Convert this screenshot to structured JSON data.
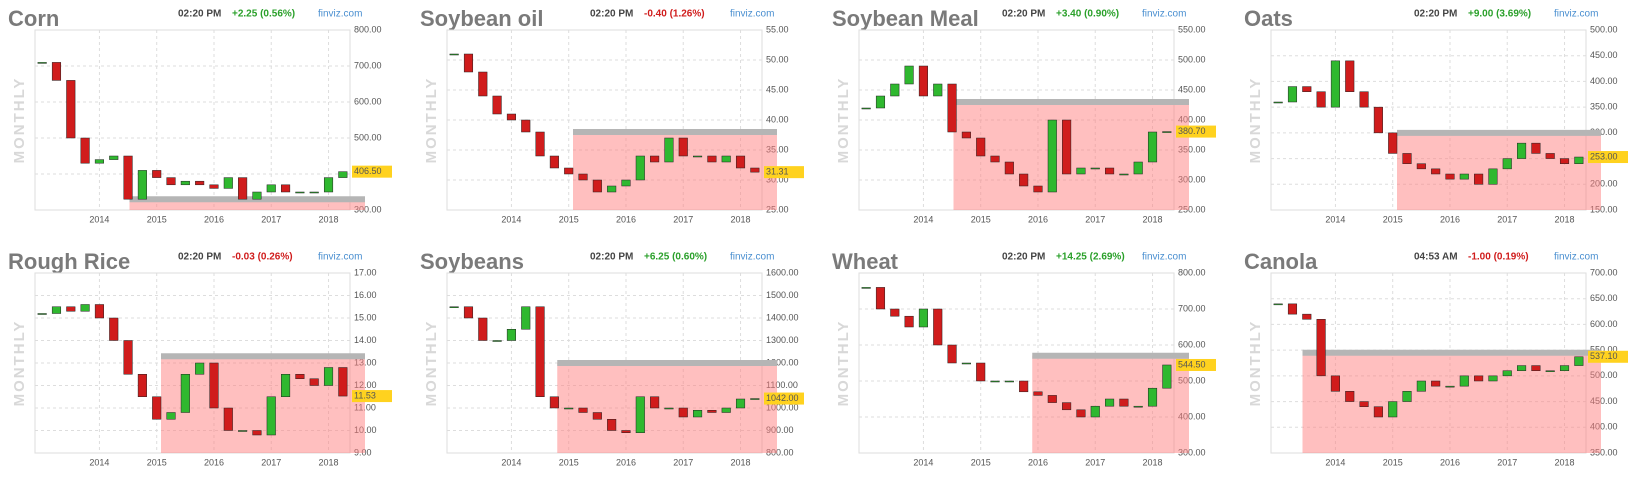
{
  "chart_data": [
    {
      "type": "candlestick",
      "title": "Corn",
      "time": "02:20 PM",
      "change": "+2.25 (0.56%)",
      "change_color": "#2aa02a",
      "source": "finviz.com",
      "y_label": "MONTHLY",
      "categories": [
        null,
        null,
        null,
        null,
        "2014",
        null,
        null,
        null,
        "2015",
        null,
        null,
        null,
        "2016",
        null,
        null,
        null,
        "2017",
        null,
        null,
        null,
        "2018",
        null
      ],
      "values": [
        710,
        660,
        500,
        430,
        440,
        450,
        330,
        410,
        390,
        370,
        380,
        370,
        360,
        390,
        330,
        350,
        370,
        350,
        350,
        350,
        390,
        406.5
      ],
      "value_labels": [
        null,
        null,
        null,
        null,
        null,
        null,
        null,
        null,
        null,
        null,
        null,
        null,
        null,
        null,
        null,
        null,
        null,
        null,
        null,
        null,
        null,
        "406.50"
      ],
      "resistance": 330,
      "up_color": "#2fb82f",
      "down_color": "#d01c1c",
      "ylim": [
        300,
        800
      ],
      "yticks": [
        {
          "value": 300,
          "label": "300.00"
        },
        {
          "value": 400,
          "label": "400.00"
        },
        {
          "value": 500,
          "label": "500.00"
        },
        {
          "value": 600,
          "label": "600.00"
        },
        {
          "value": 700,
          "label": "700.00"
        },
        {
          "value": 800,
          "label": "800.00"
        }
      ]
    },
    {
      "type": "candlestick",
      "title": "Soybean oil",
      "time": "02:20 PM",
      "change": "-0.40 (1.26%)",
      "change_color": "#d01c1c",
      "source": "finviz.com",
      "y_label": "MONTHLY",
      "categories": [
        null,
        null,
        null,
        null,
        "2014",
        null,
        null,
        null,
        "2015",
        null,
        null,
        null,
        "2016",
        null,
        null,
        null,
        "2017",
        null,
        null,
        null,
        "2018",
        null
      ],
      "values": [
        51,
        48,
        44,
        41,
        40,
        38,
        34,
        32,
        31,
        30,
        28,
        29,
        30,
        34,
        33,
        37,
        34,
        34,
        33,
        34,
        32,
        31.31
      ],
      "value_labels": [
        null,
        null,
        null,
        null,
        null,
        null,
        null,
        null,
        null,
        null,
        null,
        null,
        null,
        null,
        null,
        null,
        null,
        null,
        null,
        null,
        null,
        "31.31"
      ],
      "resistance": 38,
      "up_color": "#2fb82f",
      "down_color": "#d01c1c",
      "ylim": [
        25,
        55
      ],
      "yticks": [
        {
          "value": 25,
          "label": "25.00"
        },
        {
          "value": 30,
          "label": "30.00"
        },
        {
          "value": 35,
          "label": "35.00"
        },
        {
          "value": 40,
          "label": "40.00"
        },
        {
          "value": 45,
          "label": "45.00"
        },
        {
          "value": 50,
          "label": "50.00"
        },
        {
          "value": 55,
          "label": "55.00"
        }
      ]
    },
    {
      "type": "candlestick",
      "title": "Soybean Meal",
      "time": "02:20 PM",
      "change": "+3.40 (0.90%)",
      "change_color": "#2aa02a",
      "source": "finviz.com",
      "y_label": "MONTHLY",
      "categories": [
        null,
        null,
        null,
        null,
        "2014",
        null,
        null,
        null,
        "2015",
        null,
        null,
        null,
        "2016",
        null,
        null,
        null,
        "2017",
        null,
        null,
        null,
        "2018",
        null
      ],
      "values": [
        420,
        440,
        460,
        490,
        440,
        460,
        380,
        370,
        340,
        330,
        310,
        290,
        280,
        400,
        310,
        320,
        320,
        310,
        310,
        330,
        380,
        380.7
      ],
      "value_labels": [
        null,
        null,
        null,
        null,
        null,
        null,
        null,
        null,
        null,
        null,
        null,
        null,
        null,
        null,
        null,
        null,
        null,
        null,
        null,
        null,
        null,
        "380.70"
      ],
      "resistance": 430,
      "up_color": "#2fb82f",
      "down_color": "#d01c1c",
      "ylim": [
        250,
        550
      ],
      "yticks": [
        {
          "value": 250,
          "label": "250.00"
        },
        {
          "value": 300,
          "label": "300.00"
        },
        {
          "value": 350,
          "label": "350.00"
        },
        {
          "value": 400,
          "label": "400.00"
        },
        {
          "value": 450,
          "label": "450.00"
        },
        {
          "value": 500,
          "label": "500.00"
        },
        {
          "value": 550,
          "label": "550.00"
        }
      ]
    },
    {
      "type": "candlestick",
      "title": "Oats",
      "time": "02:20 PM",
      "change": "+9.00 (3.69%)",
      "change_color": "#2aa02a",
      "source": "finviz.com",
      "y_label": "MONTHLY",
      "categories": [
        null,
        null,
        null,
        null,
        "2014",
        null,
        null,
        null,
        "2015",
        null,
        null,
        null,
        "2016",
        null,
        null,
        null,
        "2017",
        null,
        null,
        null,
        "2018",
        null
      ],
      "values": [
        360,
        390,
        380,
        350,
        440,
        380,
        350,
        300,
        260,
        240,
        230,
        220,
        210,
        220,
        200,
        230,
        250,
        280,
        260,
        250,
        240,
        253
      ],
      "value_labels": [
        null,
        null,
        null,
        null,
        null,
        null,
        null,
        null,
        null,
        null,
        null,
        null,
        null,
        null,
        null,
        null,
        null,
        null,
        null,
        null,
        null,
        "253.00"
      ],
      "resistance": 300,
      "up_color": "#2fb82f",
      "down_color": "#d01c1c",
      "ylim": [
        150,
        500
      ],
      "yticks": [
        {
          "value": 150,
          "label": "150.00"
        },
        {
          "value": 200,
          "label": "200.00"
        },
        {
          "value": 250,
          "label": "250.00"
        },
        {
          "value": 300,
          "label": "300.00"
        },
        {
          "value": 350,
          "label": "350.00"
        },
        {
          "value": 400,
          "label": "400.00"
        },
        {
          "value": 450,
          "label": "450.00"
        },
        {
          "value": 500,
          "label": "500.00"
        }
      ]
    },
    {
      "type": "candlestick",
      "title": "Rough Rice",
      "time": "02:20 PM",
      "change": "-0.03 (0.26%)",
      "change_color": "#d01c1c",
      "source": "finviz.com",
      "y_label": "MONTHLY",
      "categories": [
        null,
        null,
        null,
        null,
        "2014",
        null,
        null,
        null,
        "2015",
        null,
        null,
        null,
        "2016",
        null,
        null,
        null,
        "2017",
        null,
        null,
        null,
        "2018",
        null
      ],
      "values": [
        15.2,
        15.5,
        15.3,
        15.6,
        15.0,
        14.0,
        12.5,
        11.5,
        10.5,
        10.8,
        12.5,
        13.0,
        11.0,
        10.0,
        10.0,
        9.8,
        11.5,
        12.5,
        12.3,
        12.0,
        12.8,
        11.53
      ],
      "value_labels": [
        null,
        null,
        null,
        null,
        null,
        null,
        null,
        null,
        null,
        null,
        null,
        null,
        null,
        null,
        null,
        null,
        null,
        null,
        null,
        null,
        null,
        "11.53"
      ],
      "resistance": 13.3,
      "up_color": "#2fb82f",
      "down_color": "#d01c1c",
      "ylim": [
        9,
        17
      ],
      "yticks": [
        {
          "value": 9,
          "label": "9.00"
        },
        {
          "value": 10,
          "label": "10.00"
        },
        {
          "value": 11,
          "label": "11.00"
        },
        {
          "value": 12,
          "label": "12.00"
        },
        {
          "value": 13,
          "label": "13.00"
        },
        {
          "value": 14,
          "label": "14.00"
        },
        {
          "value": 15,
          "label": "15.00"
        },
        {
          "value": 16,
          "label": "16.00"
        },
        {
          "value": 17,
          "label": "17.00"
        }
      ]
    },
    {
      "type": "candlestick",
      "title": "Soybeans",
      "time": "02:20 PM",
      "change": "+6.25 (0.60%)",
      "change_color": "#2aa02a",
      "source": "finviz.com",
      "y_label": "MONTHLY",
      "categories": [
        null,
        null,
        null,
        null,
        "2014",
        null,
        null,
        null,
        "2015",
        null,
        null,
        null,
        "2016",
        null,
        null,
        null,
        "2017",
        null,
        null,
        null,
        "2018",
        null
      ],
      "values": [
        1450,
        1400,
        1300,
        1300,
        1350,
        1450,
        1050,
        1000,
        1000,
        980,
        950,
        900,
        890,
        1050,
        1000,
        1000,
        960,
        990,
        980,
        1000,
        1040,
        1042
      ],
      "value_labels": [
        null,
        null,
        null,
        null,
        null,
        null,
        null,
        null,
        null,
        null,
        null,
        null,
        null,
        null,
        null,
        null,
        null,
        null,
        null,
        null,
        null,
        "1042.00"
      ],
      "resistance": 1200,
      "up_color": "#2fb82f",
      "down_color": "#d01c1c",
      "ylim": [
        800,
        1600
      ],
      "yticks": [
        {
          "value": 800,
          "label": "800.00"
        },
        {
          "value": 900,
          "label": "900.00"
        },
        {
          "value": 1000,
          "label": "1000.00"
        },
        {
          "value": 1100,
          "label": "1100.00"
        },
        {
          "value": 1200,
          "label": "1200.00"
        },
        {
          "value": 1300,
          "label": "1300.00"
        },
        {
          "value": 1400,
          "label": "1400.00"
        },
        {
          "value": 1500,
          "label": "1500.00"
        },
        {
          "value": 1600,
          "label": "1600.00"
        }
      ]
    },
    {
      "type": "candlestick",
      "title": "Wheat",
      "time": "02:20 PM",
      "change": "+14.25 (2.69%)",
      "change_color": "#2aa02a",
      "source": "finviz.com",
      "y_label": "MONTHLY",
      "categories": [
        null,
        null,
        null,
        null,
        "2014",
        null,
        null,
        null,
        "2015",
        null,
        null,
        null,
        "2016",
        null,
        null,
        null,
        "2017",
        null,
        null,
        null,
        "2018",
        null
      ],
      "values": [
        760,
        700,
        680,
        650,
        700,
        600,
        550,
        550,
        500,
        500,
        500,
        470,
        460,
        440,
        420,
        400,
        430,
        450,
        430,
        430,
        480,
        544.5
      ],
      "value_labels": [
        null,
        null,
        null,
        null,
        null,
        null,
        null,
        null,
        null,
        null,
        null,
        null,
        null,
        null,
        null,
        null,
        null,
        null,
        null,
        null,
        null,
        "544.50"
      ],
      "resistance": 570,
      "up_color": "#2fb82f",
      "down_color": "#d01c1c",
      "ylim": [
        300,
        800
      ],
      "yticks": [
        {
          "value": 300,
          "label": "300.00"
        },
        {
          "value": 400,
          "label": "400.00"
        },
        {
          "value": 500,
          "label": "500.00"
        },
        {
          "value": 600,
          "label": "600.00"
        },
        {
          "value": 700,
          "label": "700.00"
        },
        {
          "value": 800,
          "label": "800.00"
        }
      ]
    },
    {
      "type": "candlestick",
      "title": "Canola",
      "time": "04:53 AM",
      "change": "-1.00 (0.19%)",
      "change_color": "#d01c1c",
      "source": "finviz.com",
      "y_label": "MONTHLY",
      "categories": [
        null,
        null,
        null,
        null,
        "2014",
        null,
        null,
        null,
        "2015",
        null,
        null,
        null,
        "2016",
        null,
        null,
        null,
        "2017",
        null,
        null,
        null,
        "2018",
        null
      ],
      "values": [
        640,
        620,
        610,
        500,
        470,
        450,
        440,
        420,
        450,
        470,
        490,
        480,
        480,
        500,
        490,
        500,
        510,
        520,
        510,
        510,
        520,
        537.1
      ],
      "value_labels": [
        null,
        null,
        null,
        null,
        null,
        null,
        null,
        null,
        null,
        null,
        null,
        null,
        null,
        null,
        null,
        null,
        null,
        null,
        null,
        null,
        null,
        "537.10"
      ],
      "resistance": 545,
      "up_color": "#2fb82f",
      "down_color": "#d01c1c",
      "ylim": [
        350,
        700
      ],
      "yticks": [
        {
          "value": 350,
          "label": "350.00"
        },
        {
          "value": 400,
          "label": "400.00"
        },
        {
          "value": 450,
          "label": "450.00"
        },
        {
          "value": 500,
          "label": "500.00"
        },
        {
          "value": 550,
          "label": "550.00"
        },
        {
          "value": 600,
          "label": "600.00"
        },
        {
          "value": 650,
          "label": "650.00"
        },
        {
          "value": 700,
          "label": "700.00"
        }
      ]
    }
  ]
}
